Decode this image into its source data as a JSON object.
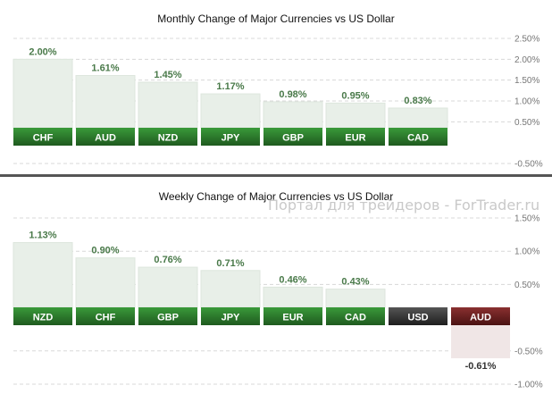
{
  "watermark": "Портал для трейдеров - ForTrader.ru",
  "colors": {
    "positive_label_top": "#3a9a3a",
    "positive_label_bottom": "#1f5a1f",
    "base_label_top": "#555555",
    "base_label_bottom": "#1e1e1e",
    "negative_label_top": "#8a3030",
    "negative_label_bottom": "#4a1212",
    "positive_bar": "#e8efe8",
    "negative_bar": "#f0e6e6"
  },
  "chart_data": [
    {
      "type": "bar",
      "title": "Monthly Change of Major Currencies vs US Dollar",
      "base_currency": "USD",
      "categories": [
        "CHF",
        "AUD",
        "NZD",
        "JPY",
        "GBP",
        "EUR",
        "CAD"
      ],
      "values": [
        2.0,
        1.61,
        1.45,
        1.17,
        0.98,
        0.95,
        0.83
      ],
      "value_labels": [
        "2.00%",
        "1.61%",
        "1.45%",
        "1.17%",
        "0.98%",
        "0.95%",
        "0.83%"
      ],
      "yticks": [
        2.5,
        2.0,
        1.5,
        1.0,
        0.5,
        -0.5
      ],
      "ytick_labels": [
        "2.50%",
        "2.00%",
        "1.50%",
        "1.00%",
        "0.50%",
        "-0.50%"
      ],
      "ylim": [
        -0.5,
        2.5
      ],
      "grid": true
    },
    {
      "type": "bar",
      "title": "Weekly Change of Major Currencies vs US Dollar",
      "base_currency": "USD",
      "categories": [
        "NZD",
        "CHF",
        "GBP",
        "JPY",
        "EUR",
        "CAD",
        "USD",
        "AUD"
      ],
      "values": [
        1.13,
        0.9,
        0.76,
        0.71,
        0.46,
        0.43,
        null,
        -0.61
      ],
      "value_labels": [
        "1.13%",
        "0.90%",
        "0.76%",
        "0.71%",
        "0.46%",
        "0.43%",
        "",
        "-0.61%"
      ],
      "yticks": [
        1.5,
        1.0,
        0.5,
        -0.5,
        -1.0
      ],
      "ytick_labels": [
        "1.50%",
        "1.00%",
        "0.50%",
        "-0.50%",
        "-1.00%"
      ],
      "ylim": [
        -1.0,
        1.5
      ],
      "grid": true
    }
  ]
}
